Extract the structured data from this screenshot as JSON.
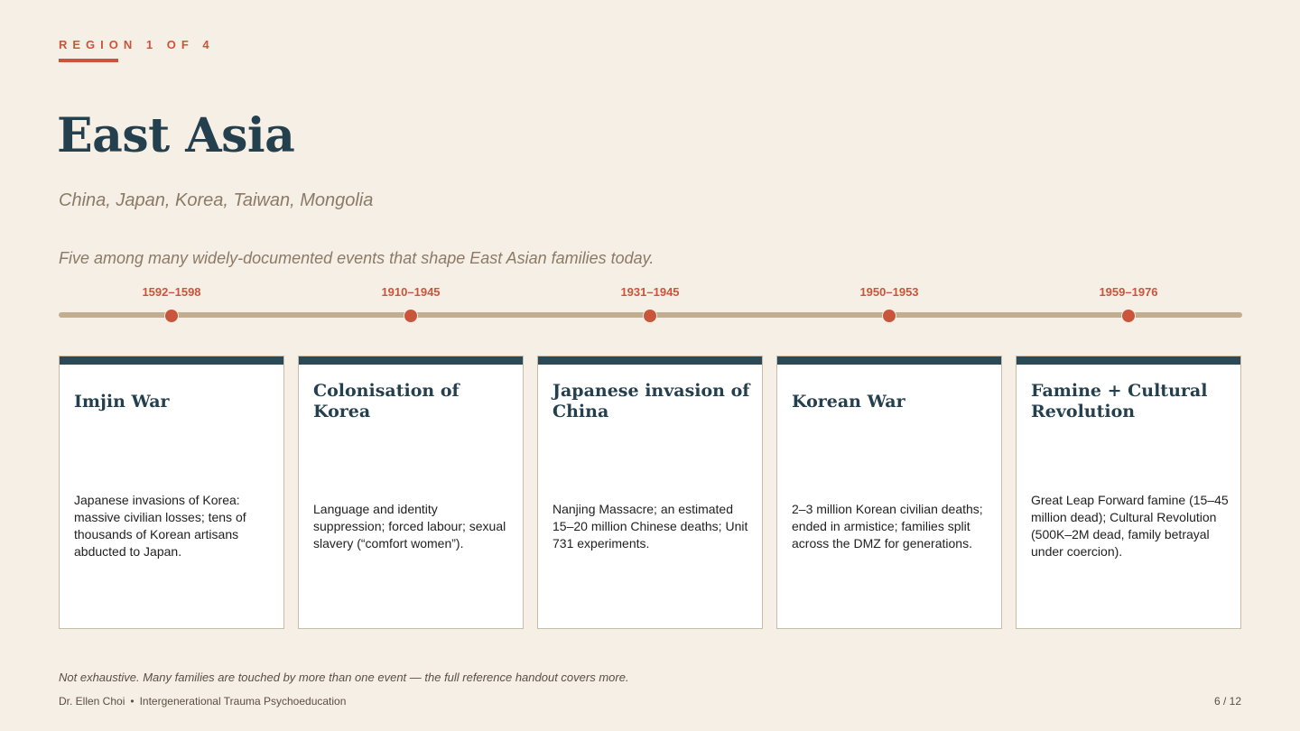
{
  "eyebrow": "REGION 1 OF 4",
  "title": "East Asia",
  "subtitle": "China, Japan, Korea, Taiwan, Mongolia",
  "intro": "Five among many widely-documented events that shape East Asian families today.",
  "events": [
    {
      "date": "1592–1598",
      "title": "Imjin War",
      "body": "Japanese invasions of Korea: massive civilian losses; tens of thousands of Korean artisans abducted to Japan."
    },
    {
      "date": "1910–1945",
      "title": "Colonisation of Korea",
      "body": "Language and identity suppression; forced labour; sexual slavery (“comfort women”)."
    },
    {
      "date": "1931–1945",
      "title": "Japanese invasion of China",
      "body": "Nanjing Massacre; an estimated 15–20 million Chinese deaths; Unit 731 experiments."
    },
    {
      "date": "1950–1953",
      "title": "Korean War",
      "body": "2–3 million Korean civilian deaths; ended in armistice; families split across the DMZ for generations."
    },
    {
      "date": "1959–1976",
      "title": "Famine + Cultural Revolution",
      "body": "Great Leap Forward famine (15–45 million dead); Cultural Revolution (500K–2M dead, family betrayal under coercion)."
    }
  ],
  "note": "Not exhaustive. Many families are touched by more than one event — the full reference handout covers more.",
  "footer": {
    "author": "Dr. Ellen Choi",
    "separator": "•",
    "course": "Intergenerational Trauma Psychoeducation",
    "page": "6 / 12"
  },
  "colors": {
    "background": "#f6efe6",
    "accent": "#c9553b",
    "navy": "#243f4d",
    "timeline": "#c2ad8e"
  }
}
